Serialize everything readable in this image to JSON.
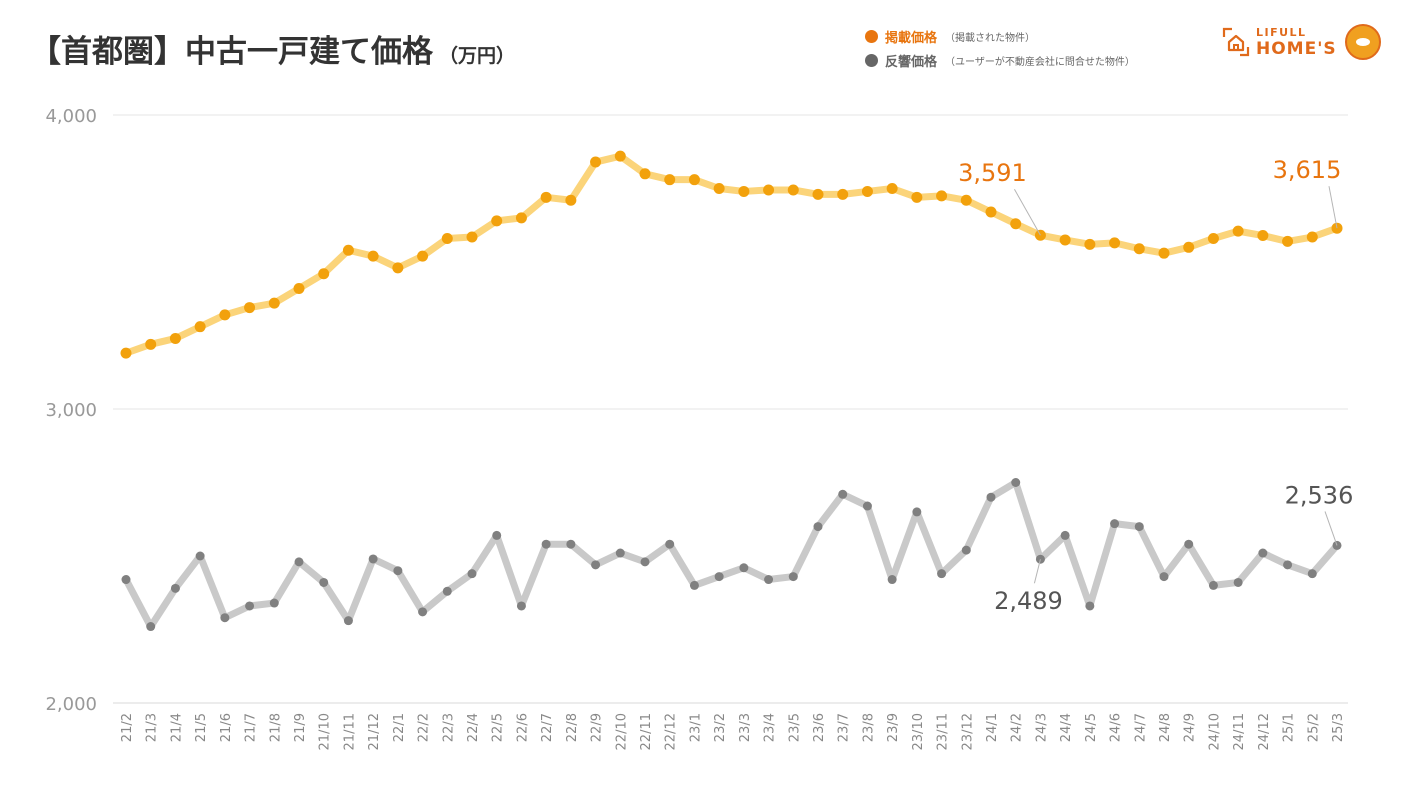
{
  "header": {
    "title": "【首都圏】中古一戸建て価格",
    "unit": "（万円）"
  },
  "legend": [
    {
      "name": "掲載価格",
      "note": "（掲載された物件）",
      "color": "#e8750f"
    },
    {
      "name": "反響価格",
      "note": "（ユーザーが不動産会社に問合せた物件）",
      "color": "#666666"
    }
  ],
  "brand": {
    "line1": "LIFULL",
    "line2": "HOME'S",
    "icon": "house-icon",
    "color": "#e06a1b"
  },
  "chart_data": {
    "type": "line",
    "title": "【首都圏】中古一戸建て価格",
    "ylabel": "（万円）",
    "xlabel": "",
    "ylim": [
      2000,
      4000
    ],
    "yticks": [
      2000,
      3000,
      4000
    ],
    "ytick_labels": [
      "2,000",
      "3,000",
      "4,000"
    ],
    "grid": true,
    "categories": [
      "21/2",
      "21/3",
      "21/4",
      "21/5",
      "21/6",
      "21/7",
      "21/8",
      "21/9",
      "21/10",
      "21/11",
      "21/12",
      "22/1",
      "22/2",
      "22/3",
      "22/4",
      "22/5",
      "22/6",
      "22/7",
      "22/8",
      "22/9",
      "22/10",
      "22/11",
      "22/12",
      "23/1",
      "23/2",
      "23/3",
      "23/4",
      "23/5",
      "23/6",
      "23/7",
      "23/8",
      "23/9",
      "23/10",
      "23/11",
      "23/12",
      "24/1",
      "24/2",
      "24/3",
      "24/4",
      "24/5",
      "24/6",
      "24/7",
      "24/8",
      "24/9",
      "24/10",
      "24/11",
      "24/12",
      "25/1",
      "25/2",
      "25/3"
    ],
    "series": [
      {
        "name": "掲載価格",
        "line_color": "#fbd47a",
        "marker_color": "#f2a10c",
        "label_color": "#e8750f",
        "values": [
          3190,
          3220,
          3240,
          3280,
          3320,
          3345,
          3360,
          3410,
          3460,
          3540,
          3520,
          3480,
          3520,
          3580,
          3585,
          3640,
          3650,
          3720,
          3710,
          3840,
          3860,
          3800,
          3780,
          3780,
          3750,
          3740,
          3745,
          3745,
          3730,
          3730,
          3740,
          3750,
          3720,
          3725,
          3710,
          3670,
          3630,
          3591,
          3575,
          3560,
          3565,
          3545,
          3530,
          3550,
          3580,
          3605,
          3590,
          3570,
          3585,
          3615
        ],
        "annotations": [
          {
            "index": 37,
            "text": "3,591"
          },
          {
            "index": 49,
            "text": "3,615"
          }
        ]
      },
      {
        "name": "反響価格",
        "line_color": "#c9c9c9",
        "marker_color": "#808080",
        "label_color": "#555555",
        "values": [
          2420,
          2260,
          2390,
          2500,
          2290,
          2330,
          2340,
          2480,
          2410,
          2280,
          2490,
          2450,
          2310,
          2380,
          2440,
          2570,
          2330,
          2540,
          2540,
          2470,
          2510,
          2480,
          2540,
          2400,
          2430,
          2460,
          2420,
          2430,
          2600,
          2710,
          2670,
          2420,
          2650,
          2440,
          2520,
          2700,
          2750,
          2489,
          2570,
          2330,
          2610,
          2600,
          2430,
          2540,
          2400,
          2410,
          2510,
          2470,
          2440,
          2536
        ],
        "annotations": [
          {
            "index": 37,
            "text": "2,489"
          },
          {
            "index": 49,
            "text": "2,536"
          }
        ]
      }
    ]
  }
}
